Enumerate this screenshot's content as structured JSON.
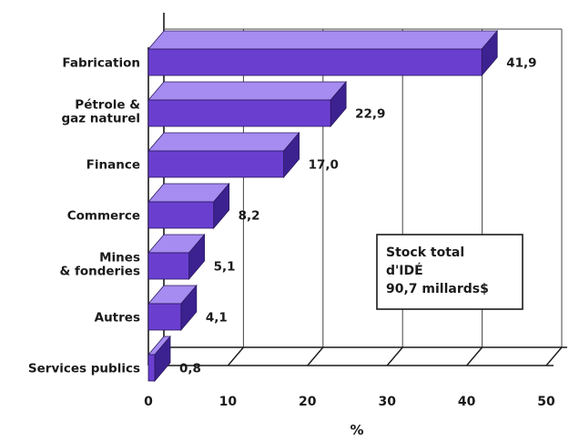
{
  "chart_data": {
    "type": "bar",
    "orientation": "horizontal",
    "style": "3d",
    "categories": [
      [
        "Fabrication"
      ],
      [
        "Pétrole &",
        "gaz naturel"
      ],
      [
        "Finance"
      ],
      [
        "Commerce"
      ],
      [
        "Mines",
        "& fonderies"
      ],
      [
        "Autres"
      ],
      [
        "Services publics"
      ]
    ],
    "values": [
      41.9,
      22.9,
      17.0,
      8.2,
      5.1,
      4.1,
      0.8
    ],
    "value_labels": [
      "41,9",
      "22,9",
      "17,0",
      "8,2",
      "5,1",
      "4,1",
      "0,8"
    ],
    "xlabel": "%",
    "xlim": [
      0,
      50
    ],
    "xticks": [
      "0",
      "10",
      "20",
      "30",
      "40",
      "50"
    ],
    "grid": true,
    "bar_colors": {
      "front": "#6a3fd0",
      "top": "#a68bf0",
      "side": "#3c2290",
      "edge": "#2a175e"
    },
    "annotation": [
      "Stock total",
      "d'IDÉ",
      "90,7 millards$"
    ]
  }
}
